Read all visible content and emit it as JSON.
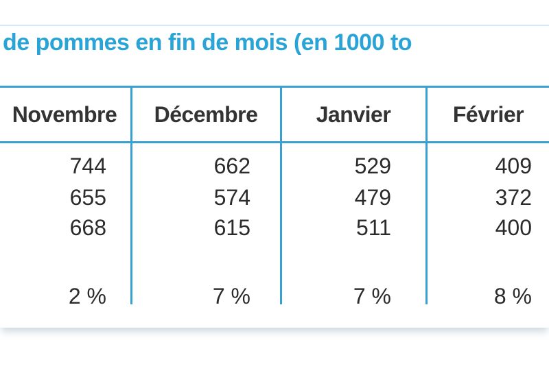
{
  "table": {
    "title": "de pommes en fin de mois (en 1000 to",
    "columns": [
      "Novembre",
      "Décembre",
      "Janvier",
      "Février"
    ],
    "rows": [
      [
        "744",
        "662",
        "529",
        "409"
      ],
      [
        "655",
        "574",
        "479",
        "372"
      ],
      [
        "668",
        "615",
        "511",
        "400"
      ],
      [
        "2 %",
        "7 %",
        "7 %",
        "8 %"
      ]
    ]
  },
  "colors": {
    "title": "#2aa3d6",
    "rule": "#3aa0cf",
    "text": "#2b2b2b"
  }
}
